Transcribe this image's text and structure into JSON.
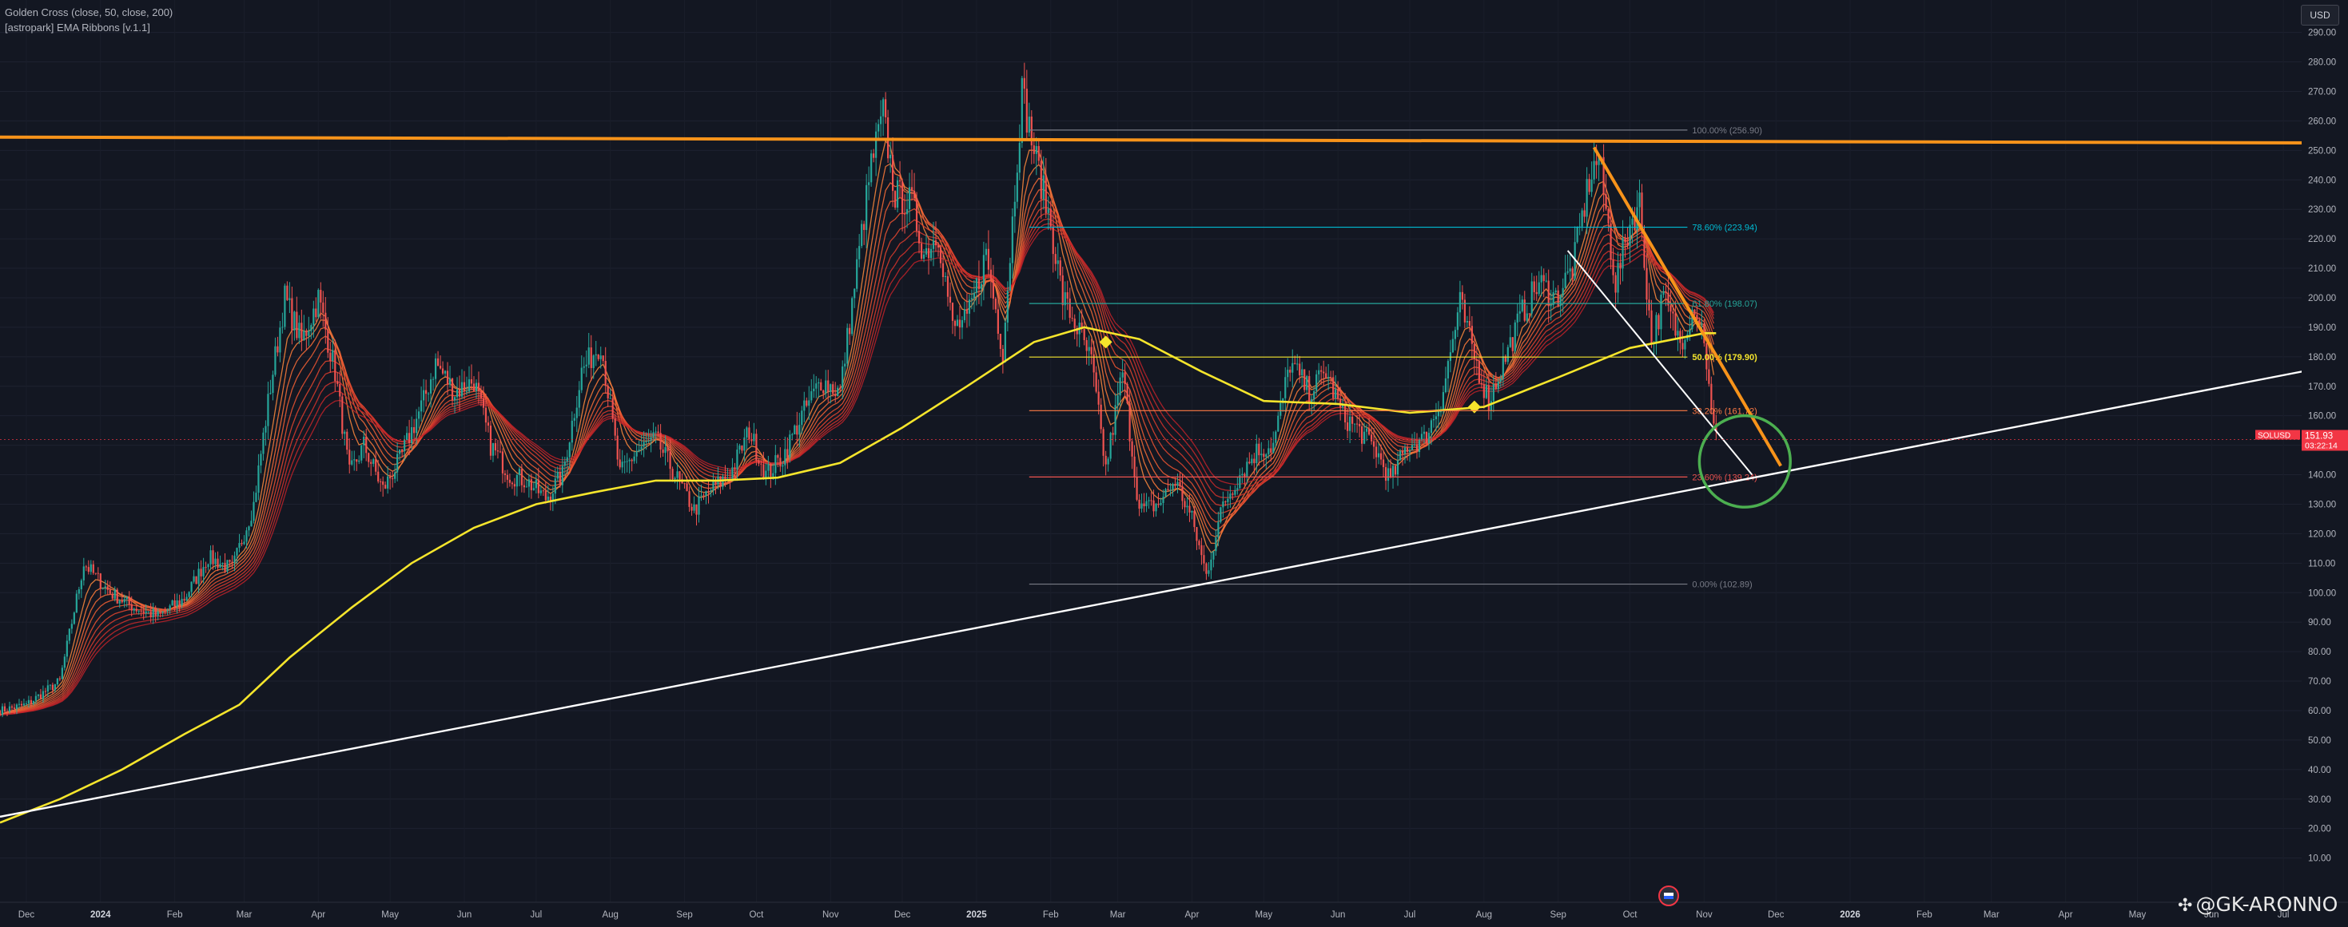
{
  "legend": {
    "line1": "Golden Cross (close, 50, close, 200)",
    "line2": "[astropark] EMA Ribbons [v.1.1]"
  },
  "currency_button": "USD",
  "watermark": "@GK-ARONNO",
  "colors": {
    "background": "#131722",
    "up_candle": "#26a69a",
    "down_candle": "#ef5350",
    "ma200": "#f5e52c",
    "resistance": "#f7931a",
    "trendline": "#ffffff",
    "circle": "#4caf50",
    "price_label": "#f23645"
  },
  "chart_data": {
    "type": "candlestick",
    "symbol": "SOLUSD",
    "last_price": "151.93",
    "countdown": "03:22:14",
    "y_axis": {
      "ylim": [
        -5,
        301
      ],
      "ticks": [
        10,
        20,
        30,
        40,
        50,
        60,
        70,
        80,
        90,
        100,
        110,
        120,
        130,
        140,
        150,
        160,
        170,
        180,
        190,
        200,
        210,
        220,
        230,
        240,
        250,
        260,
        270,
        280,
        290
      ],
      "tick_labels": [
        "10.00",
        "20.00",
        "30.00",
        "40.00",
        "50.00",
        "60.00",
        "70.00",
        "80.00",
        "90.00",
        "100.00",
        "110.00",
        "120.00",
        "130.00",
        "140.00",
        "150.00",
        "160.00",
        "170.00",
        "180.00",
        "190.00",
        "200.00",
        "210.00",
        "220.00",
        "230.00",
        "240.00",
        "250.00",
        "260.00",
        "270.00",
        "280.00",
        "290.00"
      ]
    },
    "x_axis": {
      "labels": [
        "Dec",
        "2024",
        "Feb",
        "Mar",
        "Apr",
        "May",
        "Jun",
        "Jul",
        "Aug",
        "Sep",
        "Oct",
        "Nov",
        "Dec",
        "2025",
        "Feb",
        "Mar",
        "Apr",
        "May",
        "Jun",
        "Jul",
        "Aug",
        "Sep",
        "Oct",
        "Nov",
        "Dec",
        "2026",
        "Feb",
        "Mar",
        "Apr",
        "May",
        "Jun",
        "Jul"
      ],
      "bold": [
        "2024",
        "2025",
        "2026"
      ],
      "range": [
        "2023-11-20",
        "2026-07-28"
      ]
    },
    "price_path": [
      [
        "2023-11-20",
        60
      ],
      [
        "2023-12-01",
        62
      ],
      [
        "2023-12-15",
        70
      ],
      [
        "2023-12-25",
        110
      ],
      [
        "2024-01-05",
        100
      ],
      [
        "2024-01-15",
        95
      ],
      [
        "2024-01-25",
        92
      ],
      [
        "2024-02-05",
        98
      ],
      [
        "2024-02-15",
        112
      ],
      [
        "2024-02-25",
        108
      ],
      [
        "2024-03-05",
        130
      ],
      [
        "2024-03-12",
        170
      ],
      [
        "2024-03-18",
        200
      ],
      [
        "2024-03-25",
        185
      ],
      [
        "2024-04-01",
        200
      ],
      [
        "2024-04-08",
        175
      ],
      [
        "2024-04-14",
        140
      ],
      [
        "2024-04-20",
        150
      ],
      [
        "2024-04-28",
        135
      ],
      [
        "2024-05-05",
        145
      ],
      [
        "2024-05-15",
        165
      ],
      [
        "2024-05-20",
        178
      ],
      [
        "2024-05-28",
        168
      ],
      [
        "2024-06-05",
        172
      ],
      [
        "2024-06-12",
        150
      ],
      [
        "2024-06-20",
        140
      ],
      [
        "2024-06-27",
        138
      ],
      [
        "2024-07-05",
        132
      ],
      [
        "2024-07-12",
        140
      ],
      [
        "2024-07-20",
        175
      ],
      [
        "2024-07-28",
        185
      ],
      [
        "2024-08-05",
        140
      ],
      [
        "2024-08-12",
        148
      ],
      [
        "2024-08-20",
        152
      ],
      [
        "2024-08-28",
        140
      ],
      [
        "2024-09-05",
        128
      ],
      [
        "2024-09-12",
        135
      ],
      [
        "2024-09-20",
        140
      ],
      [
        "2024-09-28",
        155
      ],
      [
        "2024-10-05",
        140
      ],
      [
        "2024-10-12",
        146
      ],
      [
        "2024-10-20",
        160
      ],
      [
        "2024-10-28",
        172
      ],
      [
        "2024-11-05",
        168
      ],
      [
        "2024-11-12",
        210
      ],
      [
        "2024-11-18",
        245
      ],
      [
        "2024-11-23",
        262
      ],
      [
        "2024-11-28",
        235
      ],
      [
        "2024-12-05",
        232
      ],
      [
        "2024-12-10",
        215
      ],
      [
        "2024-12-16",
        222
      ],
      [
        "2024-12-22",
        190
      ],
      [
        "2024-12-28",
        192
      ],
      [
        "2025-01-05",
        215
      ],
      [
        "2025-01-12",
        182
      ],
      [
        "2025-01-18",
        248
      ],
      [
        "2025-01-20",
        270
      ],
      [
        "2025-01-25",
        250
      ],
      [
        "2025-02-01",
        225
      ],
      [
        "2025-02-06",
        200
      ],
      [
        "2025-02-12",
        190
      ],
      [
        "2025-02-18",
        178
      ],
      [
        "2025-02-24",
        142
      ],
      [
        "2025-03-03",
        175
      ],
      [
        "2025-03-10",
        128
      ],
      [
        "2025-03-18",
        130
      ],
      [
        "2025-03-25",
        138
      ],
      [
        "2025-04-01",
        125
      ],
      [
        "2025-04-07",
        106
      ],
      [
        "2025-04-14",
        130
      ],
      [
        "2025-04-21",
        140
      ],
      [
        "2025-04-28",
        148
      ],
      [
        "2025-05-05",
        150
      ],
      [
        "2025-05-12",
        178
      ],
      [
        "2025-05-20",
        168
      ],
      [
        "2025-05-27",
        175
      ],
      [
        "2025-06-03",
        160
      ],
      [
        "2025-06-10",
        155
      ],
      [
        "2025-06-17",
        148
      ],
      [
        "2025-06-23",
        138
      ],
      [
        "2025-06-30",
        150
      ],
      [
        "2025-07-07",
        152
      ],
      [
        "2025-07-14",
        165
      ],
      [
        "2025-07-22",
        198
      ],
      [
        "2025-07-28",
        180
      ],
      [
        "2025-08-03",
        165
      ],
      [
        "2025-08-10",
        180
      ],
      [
        "2025-08-17",
        195
      ],
      [
        "2025-08-24",
        205
      ],
      [
        "2025-08-31",
        200
      ],
      [
        "2025-09-07",
        210
      ],
      [
        "2025-09-14",
        240
      ],
      [
        "2025-09-18",
        248
      ],
      [
        "2025-09-25",
        205
      ],
      [
        "2025-10-01",
        225
      ],
      [
        "2025-10-05",
        232
      ],
      [
        "2025-10-10",
        185
      ],
      [
        "2025-10-15",
        200
      ],
      [
        "2025-10-22",
        185
      ],
      [
        "2025-10-28",
        198
      ],
      [
        "2025-11-01",
        187
      ],
      [
        "2025-11-04",
        160
      ],
      [
        "2025-11-06",
        151.93
      ]
    ],
    "ma200_path": [
      [
        "2023-11-20",
        22
      ],
      [
        "2023-12-15",
        30
      ],
      [
        "2024-01-10",
        40
      ],
      [
        "2024-02-05",
        52
      ],
      [
        "2024-02-28",
        62
      ],
      [
        "2024-03-20",
        78
      ],
      [
        "2024-04-15",
        95
      ],
      [
        "2024-05-10",
        110
      ],
      [
        "2024-06-05",
        122
      ],
      [
        "2024-07-01",
        130
      ],
      [
        "2024-07-25",
        134
      ],
      [
        "2024-08-20",
        138
      ],
      [
        "2024-09-15",
        138
      ],
      [
        "2024-10-10",
        139
      ],
      [
        "2024-11-05",
        144
      ],
      [
        "2024-12-01",
        156
      ],
      [
        "2024-12-28",
        170
      ],
      [
        "2025-01-25",
        185
      ],
      [
        "2025-02-15",
        190
      ],
      [
        "2025-03-10",
        186
      ],
      [
        "2025-04-05",
        175
      ],
      [
        "2025-05-01",
        165
      ],
      [
        "2025-06-01",
        164
      ],
      [
        "2025-07-01",
        161
      ],
      [
        "2025-08-01",
        163
      ],
      [
        "2025-09-01",
        173
      ],
      [
        "2025-10-01",
        183
      ],
      [
        "2025-11-01",
        188
      ],
      [
        "2025-11-06",
        188
      ]
    ],
    "fibonacci": {
      "start": "2025-01-23",
      "end": "2025-10-25",
      "levels": [
        {
          "label": "100.00% (256.90)",
          "value": 256.9,
          "color": "#787b86"
        },
        {
          "label": "78.60% (223.94)",
          "value": 223.94,
          "color": "#00bcd4"
        },
        {
          "label": "61.80% (198.07)",
          "value": 198.07,
          "color": "#26a69a"
        },
        {
          "label": "50.00% (179.90)",
          "value": 179.9,
          "color": "#f5e52c"
        },
        {
          "label": "38.20% (161.72)",
          "value": 161.72,
          "color": "#ff7a45"
        },
        {
          "label": "23.60% (139.24)",
          "value": 139.24,
          "color": "#ef5350"
        },
        {
          "label": "0.00% (102.89)",
          "value": 102.89,
          "color": "#787b86"
        }
      ]
    },
    "drawings": {
      "horizontal_resistance": {
        "start": [
          "2023-11-20",
          254.5
        ],
        "end": [
          "2026-07-28",
          252.5
        ]
      },
      "descending_orange": {
        "start": [
          "2025-09-16",
          251
        ],
        "end": [
          "2025-12-03",
          143
        ]
      },
      "ascending_support": {
        "start": [
          "2023-11-20",
          24
        ],
        "end": [
          "2026-07-28",
          178
        ]
      },
      "descending_white": {
        "start": [
          "2025-09-05",
          216
        ],
        "end": [
          "2025-11-21",
          140
        ]
      },
      "circle": {
        "center": [
          "2025-11-18",
          144.5
        ],
        "rx_days": 19,
        "ry_value": 15.5
      }
    },
    "markers": [
      [
        "2025-02-24",
        185
      ],
      [
        "2025-07-28",
        163
      ]
    ],
    "dates_window": [
      "2023-11-20",
      "2026-07-28"
    ]
  }
}
